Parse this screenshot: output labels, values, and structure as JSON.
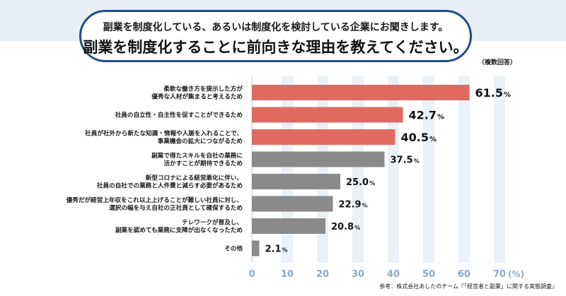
{
  "header": {
    "subtitle": "副業を制度化している、あるいは制度化を検討している企業にお聞きします。",
    "title": "副業を制度化することに前向きな理由を教えてください。",
    "note": "（複数回答）"
  },
  "source": "参考：株式会社あしたのチーム『「経営者と副業」に関する実態調査』",
  "colors": {
    "highlight": "#e06a60",
    "normal": "#8a8a8a",
    "axis_text": "#8ba8c8",
    "column_band": "#eaf1f7"
  },
  "chart_data": {
    "type": "bar",
    "orientation": "horizontal",
    "categories": [
      "柔軟な働き方を提示した方が\n優秀な人材が集まると考えるため",
      "社員の自立性・自主性を促すことができるため",
      "社員が社外から新たな知識・情報や人脈を入れることで、\n事業機会の拡大につながるため",
      "副業で得たスキルを自社の業務に\n活かすことが期待できるため",
      "新型コロナによる経営悪化に伴い、\n社員の自社での業務と人件費と減らす必要があるため",
      "優秀だが経営上年収をこれ以上上げることが難しい社員に対し、\n選択の幅を与え自社の正社員として確保するため",
      "テレワークが普及し、\n副業を認めても業務に支障が出なくなったため",
      "その他"
    ],
    "values": [
      61.5,
      42.7,
      40.5,
      37.5,
      25.0,
      22.9,
      20.8,
      2.1
    ],
    "value_labels": [
      "61.5",
      "42.7",
      "40.5",
      "37.5",
      "25.0",
      "22.9",
      "20.8",
      "2.1"
    ],
    "unit": "%",
    "highlighted": [
      true,
      true,
      true,
      false,
      false,
      false,
      false,
      false
    ],
    "xlim": [
      0,
      70
    ],
    "xticks": [
      "0",
      "10",
      "20",
      "30",
      "40",
      "50",
      "60",
      "70"
    ],
    "xlabel_unit": "(%)",
    "title": "副業を制度化することに前向きな理由を教えてください。"
  }
}
